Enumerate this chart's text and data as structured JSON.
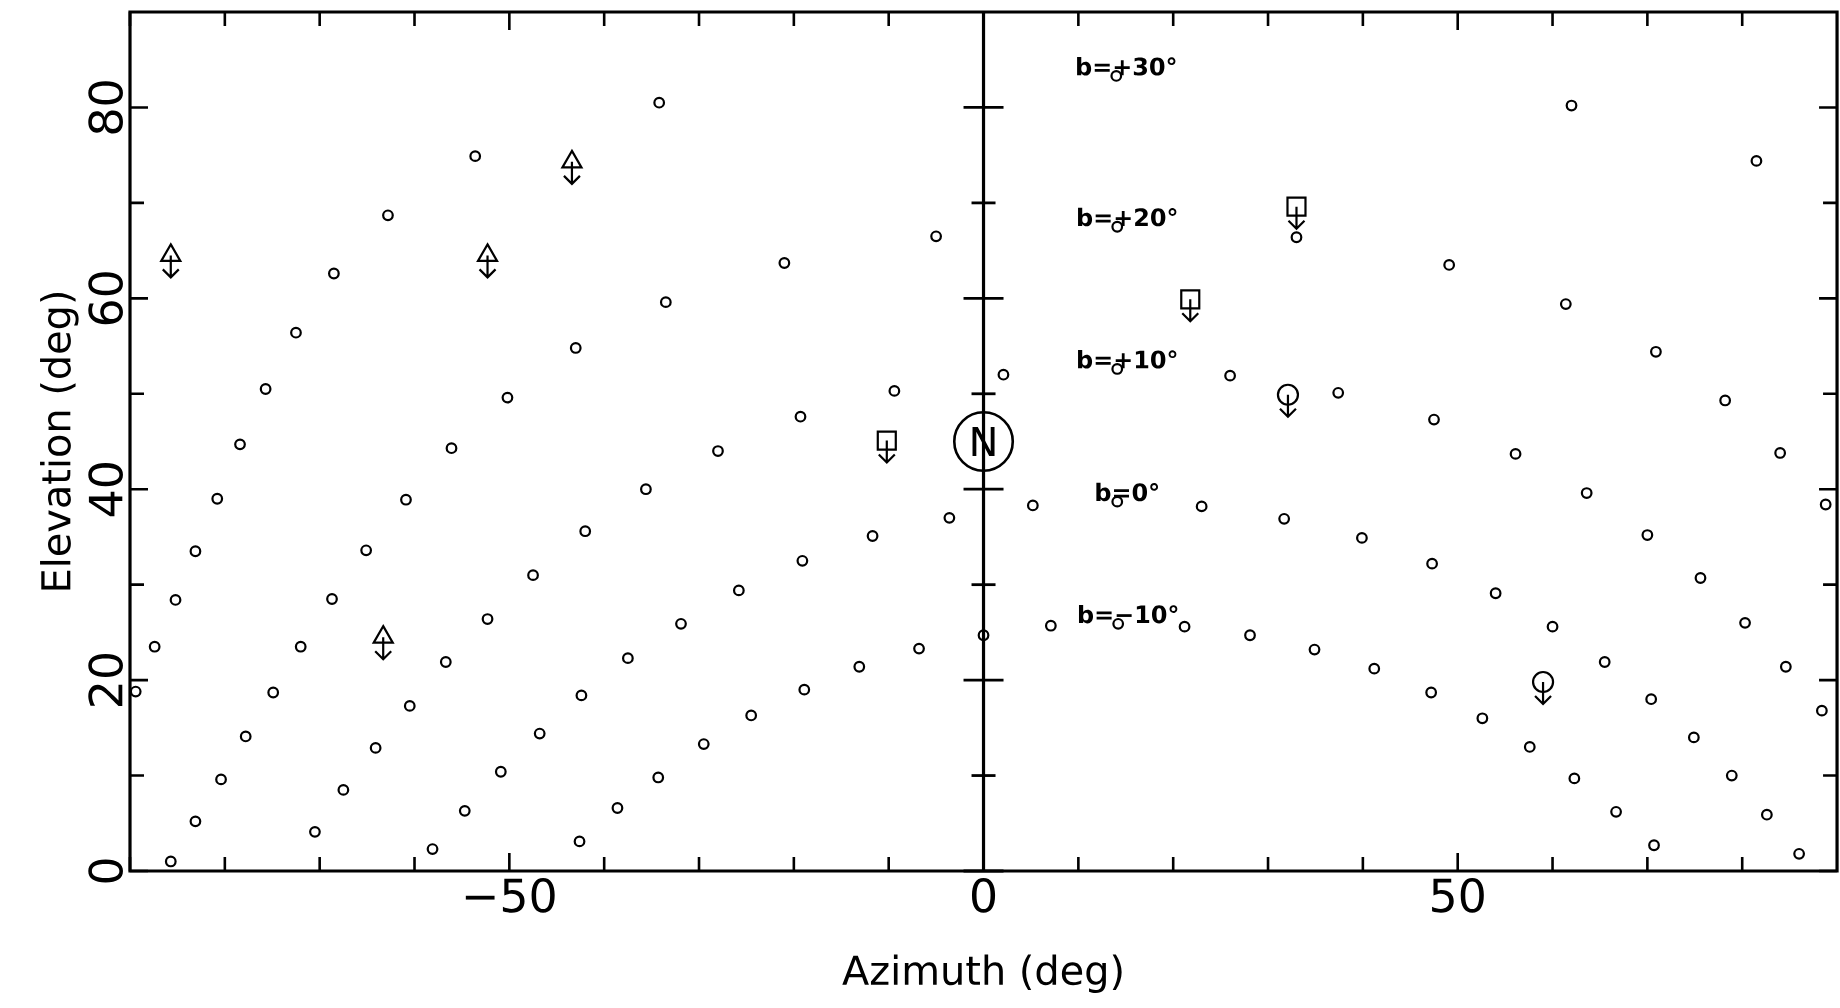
{
  "chart_data": {
    "type": "scatter",
    "xlabel": "Azimuth (deg)",
    "ylabel": "Elevation (deg)",
    "xlim": [
      -90,
      90
    ],
    "ylim": [
      0,
      90
    ],
    "xticks": [
      {
        "value": -90,
        "label": null
      },
      {
        "value": -80,
        "label": null
      },
      {
        "value": -70,
        "label": null
      },
      {
        "value": -60,
        "label": null
      },
      {
        "value": -50,
        "label": "−50"
      },
      {
        "value": -40,
        "label": null
      },
      {
        "value": -30,
        "label": null
      },
      {
        "value": -20,
        "label": null
      },
      {
        "value": -10,
        "label": null
      },
      0,
      {
        "value": 10,
        "label": null
      },
      {
        "value": 20,
        "label": null
      },
      {
        "value": 30,
        "label": null
      },
      {
        "value": 40,
        "label": null
      },
      50,
      {
        "value": 60,
        "label": null
      },
      {
        "value": 70,
        "label": null
      },
      {
        "value": 80,
        "label": null
      }
    ],
    "yticks": [
      0,
      {
        "value": 10,
        "label": null
      },
      20,
      {
        "value": 30,
        "label": null
      },
      40,
      {
        "value": 50,
        "label": null
      },
      60,
      {
        "value": 70,
        "label": null
      },
      80
    ],
    "marker": "circle",
    "ref_lines": [
      {
        "axis": "x",
        "value": 0
      }
    ],
    "annotations": [
      {
        "text": "N",
        "x": 0,
        "y": 45
      },
      {
        "text": "b=+30°",
        "x": 14.0,
        "y": 83.3
      },
      {
        "text": "b=+20°",
        "x": 14.1,
        "y": 67.5
      },
      {
        "text": "b=+10°",
        "x": 14.1,
        "y": 52.6
      },
      {
        "text": "b=0°",
        "x": 14.1,
        "y": 38.7
      },
      {
        "text": "b=−10°",
        "x": 14.2,
        "y": 25.9
      }
    ],
    "series": [
      {
        "color": "#000000",
        "x": [
          -89.4,
          -87.4,
          -85.7,
          -85.2,
          -83.1,
          -83.1,
          -80.8,
          -80.4,
          -78.4,
          -77.8,
          -75.7,
          -74.9,
          -72.5,
          -72.0,
          -70.5,
          -68.7,
          -68.5,
          -67.5,
          -65.1,
          -64.1,
          -62.8,
          -60.9,
          -60.5,
          -58.1,
          -56.7,
          -56.1,
          -54.7,
          -53.6,
          -52.3,
          -50.9,
          -50.2,
          -47.5,
          -46.8,
          -43.0,
          -42.6,
          -42.4,
          -42.0,
          -38.6,
          -37.5,
          -35.6,
          -34.3,
          -34.2,
          -33.5,
          -31.9,
          -29.5,
          -28.0,
          -25.8,
          -24.5,
          -21.0,
          -19.3,
          -19.1,
          -18.9,
          -13.1,
          -11.7,
          -9.4,
          -6.8,
          -5.0,
          -3.6,
          0.0,
          2.1,
          5.2,
          7.1,
          14.0,
          14.1,
          14.1,
          14.1,
          14.2,
          21.2,
          23.0,
          26.0,
          28.1,
          31.7,
          33.0,
          34.9,
          37.4,
          39.9,
          41.2,
          47.2,
          47.3,
          47.5,
          49.1,
          52.6,
          54.0,
          56.1,
          57.6,
          60.0,
          61.4,
          62.0,
          62.3,
          63.6,
          65.5,
          66.7,
          70.0,
          70.4,
          70.7,
          70.9,
          74.9,
          75.6,
          78.2,
          78.9,
          80.3,
          81.5,
          82.6,
          84.0,
          84.6,
          86.0,
          88.4,
          88.8
        ],
        "values": [
          18.8,
          23.5,
          1.0,
          28.4,
          33.5,
          5.2,
          39.0,
          9.6,
          44.7,
          14.1,
          50.5,
          18.7,
          56.4,
          23.5,
          4.1,
          28.5,
          62.6,
          8.5,
          33.6,
          12.9,
          68.7,
          38.9,
          17.3,
          2.3,
          21.9,
          44.3,
          6.3,
          74.9,
          26.4,
          10.4,
          49.6,
          31.0,
          14.4,
          54.8,
          3.1,
          18.4,
          35.6,
          6.6,
          22.3,
          40.0,
          9.8,
          80.5,
          59.6,
          25.9,
          13.3,
          44.0,
          29.4,
          16.3,
          63.7,
          47.6,
          32.5,
          19.0,
          21.4,
          35.1,
          50.3,
          23.3,
          66.5,
          37.0,
          24.7,
          52.0,
          38.3,
          25.7,
          83.3,
          67.5,
          52.6,
          38.7,
          25.9,
          25.6,
          38.2,
          51.9,
          24.7,
          36.9,
          66.4,
          23.2,
          50.1,
          34.9,
          21.2,
          18.7,
          32.2,
          47.3,
          63.5,
          16.0,
          29.1,
          43.7,
          13.0,
          25.6,
          59.4,
          80.2,
          9.7,
          39.6,
          21.9,
          6.2,
          35.2,
          18.0,
          2.7,
          54.4,
          14.0,
          30.7,
          49.3,
          10.0,
          26.0,
          74.4,
          5.9,
          43.8,
          21.4,
          1.8,
          16.8,
          38.4
        ]
      },
      {
        "color": "#000000",
        "marker": "triangle",
        "x": [
          -85.7,
          -63.3,
          -52.3,
          -43.4
        ],
        "values": [
          64.5,
          24.5,
          64.5,
          74.3
        ]
      },
      {
        "color": "#000000",
        "marker": "square",
        "x": [
          -10.2,
          21.8,
          33.0
        ],
        "values": [
          45.1,
          59.9,
          69.6
        ]
      },
      {
        "color": "#000000",
        "marker": "circle",
        "x": [
          32.1,
          59.0
        ],
        "values": [
          49.9,
          19.8
        ]
      }
    ]
  }
}
